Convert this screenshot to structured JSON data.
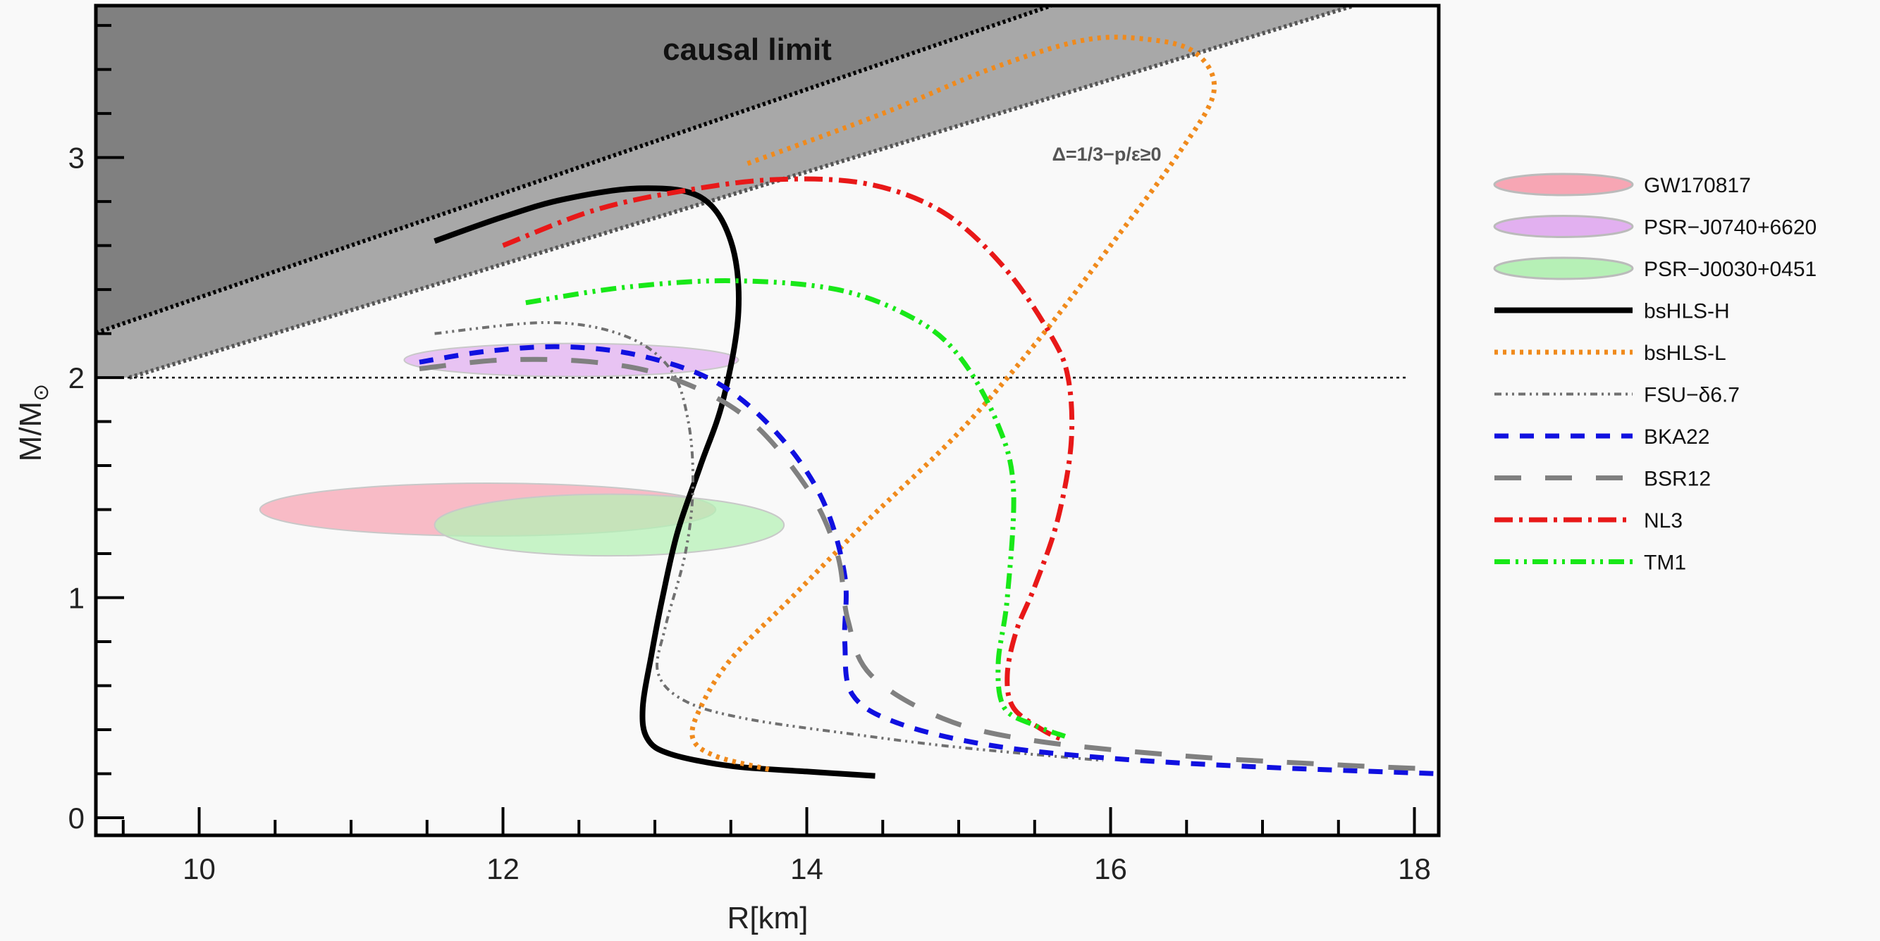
{
  "chart_data": {
    "type": "line",
    "xlabel": "R[km]",
    "ylabel": "M/M",
    "ylabel_sub": "⊙",
    "xlim": [
      9.32,
      18.16
    ],
    "ylim": [
      -0.08,
      3.69
    ],
    "xticks": [
      10,
      12,
      14,
      16,
      18
    ],
    "yticks": [
      0,
      1,
      2,
      3
    ],
    "grid": false,
    "legend_position": "right",
    "annotations": {
      "causal_limit": "causal limit",
      "conformal": "Δ=1/3−p/ε≥0"
    },
    "regions": {
      "causal_limit_slope_R_over_M": 4.23,
      "conformal_limit_slope_R_over_M": 4.77,
      "causal_color": "#808080",
      "conformal_color": "#a8a8a8",
      "reference_mass": 2.0
    },
    "ellipses": [
      {
        "name": "GW170817",
        "center": [
          11.9,
          1.4
        ],
        "radius": [
          1.5,
          0.12
        ],
        "color": "#f7a6b4"
      },
      {
        "name": "PSR−J0740+6620",
        "center": [
          12.45,
          2.08
        ],
        "radius": [
          1.1,
          0.075
        ],
        "color": "#e2b0f0"
      },
      {
        "name": "PSR−J0030+0451",
        "center": [
          12.7,
          1.33
        ],
        "radius": [
          1.15,
          0.14
        ],
        "color": "#b6f0b6"
      }
    ],
    "series": [
      {
        "name": "bsHLS-H",
        "color": "#000000",
        "style": "solid",
        "points": [
          [
            11.55,
            2.62
          ],
          [
            12.0,
            2.73
          ],
          [
            12.4,
            2.81
          ],
          [
            12.9,
            2.86
          ],
          [
            13.3,
            2.82
          ],
          [
            13.5,
            2.62
          ],
          [
            13.55,
            2.3
          ],
          [
            13.45,
            1.9
          ],
          [
            13.3,
            1.6
          ],
          [
            13.15,
            1.3
          ],
          [
            13.05,
            1.0
          ],
          [
            12.98,
            0.75
          ],
          [
            12.92,
            0.5
          ],
          [
            12.95,
            0.36
          ],
          [
            13.1,
            0.29
          ],
          [
            13.5,
            0.235
          ],
          [
            14.0,
            0.21
          ],
          [
            14.45,
            0.19
          ]
        ]
      },
      {
        "name": "bsHLS-L",
        "color": "#f08a1c",
        "style": "dotted",
        "points": [
          [
            13.75,
            0.22
          ],
          [
            13.4,
            0.28
          ],
          [
            13.25,
            0.36
          ],
          [
            13.3,
            0.5
          ],
          [
            13.5,
            0.72
          ],
          [
            13.9,
            1.0
          ],
          [
            14.4,
            1.35
          ],
          [
            15.0,
            1.75
          ],
          [
            15.5,
            2.15
          ],
          [
            16.0,
            2.6
          ],
          [
            16.45,
            3.02
          ],
          [
            16.68,
            3.3
          ],
          [
            16.55,
            3.48
          ],
          [
            16.2,
            3.54
          ],
          [
            15.8,
            3.53
          ],
          [
            15.2,
            3.4
          ],
          [
            14.5,
            3.2
          ],
          [
            13.6,
            2.97
          ]
        ]
      },
      {
        "name": "FSU−δ6.7",
        "color": "#707070",
        "style": "dashdotdot-thin",
        "points": [
          [
            11.55,
            2.2
          ],
          [
            12.3,
            2.25
          ],
          [
            12.8,
            2.19
          ],
          [
            13.1,
            2.04
          ],
          [
            13.22,
            1.8
          ],
          [
            13.25,
            1.5
          ],
          [
            13.2,
            1.2
          ],
          [
            13.07,
            0.87
          ],
          [
            13.02,
            0.66
          ],
          [
            13.2,
            0.53
          ],
          [
            13.6,
            0.45
          ],
          [
            14.3,
            0.38
          ],
          [
            15.0,
            0.32
          ],
          [
            15.95,
            0.26
          ]
        ]
      },
      {
        "name": "BKA22",
        "color": "#1010e0",
        "style": "dashed",
        "points": [
          [
            11.45,
            2.07
          ],
          [
            11.9,
            2.12
          ],
          [
            12.4,
            2.14
          ],
          [
            12.9,
            2.1
          ],
          [
            13.4,
            1.98
          ],
          [
            13.8,
            1.75
          ],
          [
            14.1,
            1.45
          ],
          [
            14.25,
            1.1
          ],
          [
            14.25,
            0.8
          ],
          [
            14.3,
            0.56
          ],
          [
            14.6,
            0.43
          ],
          [
            15.2,
            0.33
          ],
          [
            16.0,
            0.27
          ],
          [
            17.0,
            0.23
          ],
          [
            18.16,
            0.2
          ]
        ]
      },
      {
        "name": "BSR12",
        "color": "#808080",
        "style": "longdashed",
        "points": [
          [
            11.45,
            2.04
          ],
          [
            12.0,
            2.08
          ],
          [
            12.6,
            2.07
          ],
          [
            13.1,
            2.0
          ],
          [
            13.6,
            1.82
          ],
          [
            14.0,
            1.5
          ],
          [
            14.2,
            1.2
          ],
          [
            14.27,
            0.9
          ],
          [
            14.42,
            0.65
          ],
          [
            14.9,
            0.45
          ],
          [
            15.5,
            0.35
          ],
          [
            16.5,
            0.28
          ],
          [
            17.5,
            0.24
          ],
          [
            18.16,
            0.22
          ]
        ]
      },
      {
        "name": "NL3",
        "color": "#e81818",
        "style": "dashdot",
        "points": [
          [
            12.0,
            2.6
          ],
          [
            12.6,
            2.76
          ],
          [
            13.2,
            2.85
          ],
          [
            13.8,
            2.9
          ],
          [
            14.4,
            2.88
          ],
          [
            14.9,
            2.75
          ],
          [
            15.3,
            2.5
          ],
          [
            15.6,
            2.2
          ],
          [
            15.72,
            2.0
          ],
          [
            15.74,
            1.7
          ],
          [
            15.65,
            1.35
          ],
          [
            15.5,
            1.05
          ],
          [
            15.38,
            0.85
          ],
          [
            15.32,
            0.65
          ],
          [
            15.36,
            0.5
          ],
          [
            15.55,
            0.4
          ],
          [
            15.7,
            0.35
          ]
        ]
      },
      {
        "name": "TM1",
        "color": "#18e818",
        "style": "dashdotdot",
        "points": [
          [
            12.15,
            2.34
          ],
          [
            12.8,
            2.41
          ],
          [
            13.5,
            2.44
          ],
          [
            14.2,
            2.4
          ],
          [
            14.7,
            2.27
          ],
          [
            15.0,
            2.1
          ],
          [
            15.25,
            1.8
          ],
          [
            15.36,
            1.5
          ],
          [
            15.32,
            1.0
          ],
          [
            15.26,
            0.7
          ],
          [
            15.3,
            0.5
          ],
          [
            15.5,
            0.42
          ],
          [
            15.7,
            0.37
          ]
        ]
      }
    ]
  }
}
